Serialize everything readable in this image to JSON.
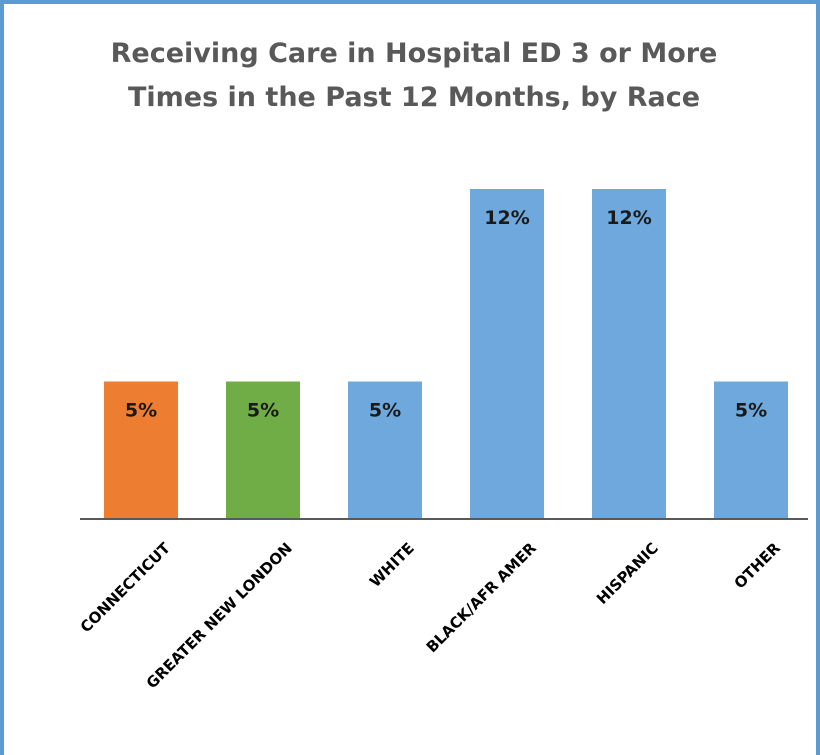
{
  "chart_data": {
    "type": "bar",
    "title_lines": [
      "Receiving Care in Hospital ED 3 or More",
      "Times in the Past 12 Months, by Race"
    ],
    "categories": [
      "CONNECTICUT",
      "GREATER NEW LONDON",
      "WHITE",
      "BLACK/AFR AMER",
      "HISPANIC",
      "OTHER"
    ],
    "values": [
      5,
      5,
      5,
      12,
      12,
      5
    ],
    "value_labels": [
      "5%",
      "5%",
      "5%",
      "12%",
      "12%",
      "5%"
    ],
    "unit": "%",
    "ylim": [
      0,
      12
    ],
    "grid": false,
    "legend": "none",
    "xlabel": "",
    "ylabel": "",
    "colors": [
      "#ed7d31",
      "#70ad47",
      "#5b9bd5",
      "#5b9bd5",
      "#5b9bd5",
      "#5b9bd5"
    ],
    "bar_colors_actual": [
      "#ed7d31",
      "#70ad47",
      "#6fa8dc",
      "#6fa8dc",
      "#6fa8dc",
      "#6fa8dc"
    ]
  }
}
